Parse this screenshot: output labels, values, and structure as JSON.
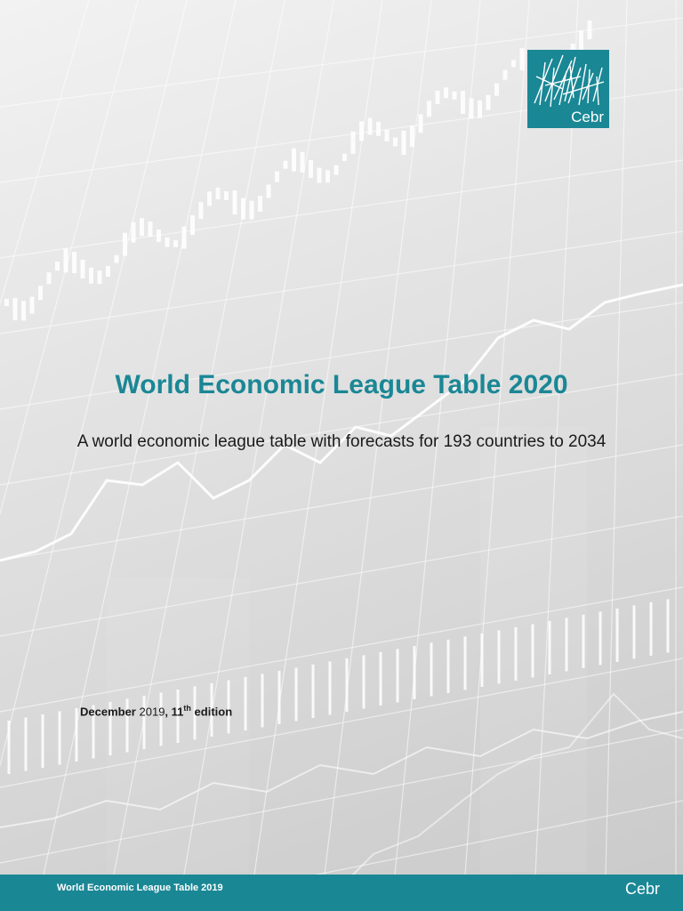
{
  "document": {
    "title": "World Economic League Table 2020",
    "subtitle": "A world economic league table with forecasts for 193 countries to 2034",
    "edition": {
      "month": "December",
      "year": "2019",
      "edition_number": "11",
      "edition_suffix": "th",
      "edition_word": "edition"
    }
  },
  "logo": {
    "text": "Cebr",
    "color": "#1a8795"
  },
  "footer": {
    "title": "World Economic League Table 2019",
    "logo_text": "Cebr",
    "color": "#1a8795"
  },
  "background": {
    "art": "financial-chart-photo"
  }
}
